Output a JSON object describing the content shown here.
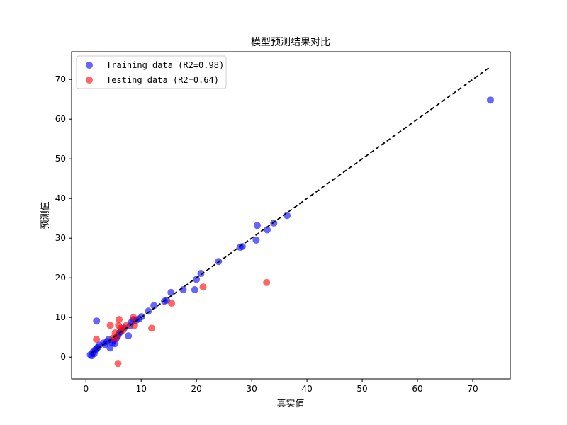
{
  "chart_data": {
    "type": "scatter",
    "title": "模型预测结果对比",
    "xlabel": "真实值",
    "ylabel": "预测值",
    "xlim": [
      -2.6,
      76.8
    ],
    "ylim": [
      -5.5,
      77.0
    ],
    "xticks": [
      0,
      10,
      20,
      30,
      40,
      50,
      60,
      70
    ],
    "yticks": [
      0,
      10,
      20,
      30,
      40,
      50,
      60,
      70
    ],
    "legend_position": "top-left",
    "reference_line": {
      "x": [
        1.0,
        73.2
      ],
      "y": [
        1.0,
        73.2
      ],
      "style": "dashed",
      "color": "#000000"
    },
    "series": [
      {
        "name": "Training data (R2=0.98)",
        "color": "#0000ff",
        "points": [
          [
            1.03,
            0.36
          ],
          [
            1.28,
            1.25
          ],
          [
            1.67,
            1.79
          ],
          [
            1.92,
            2.14
          ],
          [
            2.18,
            2.5
          ],
          [
            2.44,
            3.04
          ],
          [
            3.21,
            3.57
          ],
          [
            3.46,
            3.21
          ],
          [
            3.85,
            3.93
          ],
          [
            4.1,
            4.46
          ],
          [
            4.36,
            2.32
          ],
          [
            4.74,
            3.57
          ],
          [
            5.0,
            4.29
          ],
          [
            5.26,
            3.39
          ],
          [
            5.51,
            4.82
          ],
          [
            5.77,
            5.36
          ],
          [
            6.03,
            6.07
          ],
          [
            6.28,
            6.43
          ],
          [
            6.92,
            7.32
          ],
          [
            7.69,
            5.36
          ],
          [
            7.95,
            7.86
          ],
          [
            8.2,
            8.75
          ],
          [
            8.59,
            9.46
          ],
          [
            9.1,
            9.29
          ],
          [
            9.62,
            9.64
          ],
          [
            10.1,
            10.2
          ],
          [
            11.3,
            11.6
          ],
          [
            12.3,
            13.0
          ],
          [
            14.2,
            14.1
          ],
          [
            14.6,
            14.3
          ],
          [
            15.4,
            16.3
          ],
          [
            17.6,
            17.0
          ],
          [
            19.7,
            17.0
          ],
          [
            20.0,
            19.6
          ],
          [
            20.8,
            21.1
          ],
          [
            24.0,
            24.1
          ],
          [
            27.9,
            27.7
          ],
          [
            28.3,
            27.9
          ],
          [
            30.8,
            29.5
          ],
          [
            31.0,
            33.2
          ],
          [
            32.8,
            32.1
          ],
          [
            34.0,
            33.8
          ],
          [
            36.4,
            35.7
          ],
          [
            73.2,
            64.8
          ],
          [
            1.92,
            9.1
          ],
          [
            0.8,
            0.6
          ],
          [
            1.5,
            0.9
          ]
        ]
      },
      {
        "name": "Testing data (R2=0.64)",
        "color": "#ff0000",
        "points": [
          [
            1.9,
            4.5
          ],
          [
            4.4,
            8.0
          ],
          [
            4.9,
            4.8
          ],
          [
            5.5,
            5.0
          ],
          [
            5.9,
            8.0
          ],
          [
            6.0,
            9.5
          ],
          [
            6.3,
            7.3
          ],
          [
            5.8,
            -1.6
          ],
          [
            7.3,
            8.0
          ],
          [
            8.6,
            10.0
          ],
          [
            8.8,
            8.0
          ],
          [
            11.9,
            7.3
          ],
          [
            15.5,
            13.6
          ],
          [
            21.2,
            17.7
          ],
          [
            32.7,
            18.8
          ],
          [
            6.7,
            6.8
          ],
          [
            5.3,
            6.1
          ]
        ]
      }
    ]
  }
}
